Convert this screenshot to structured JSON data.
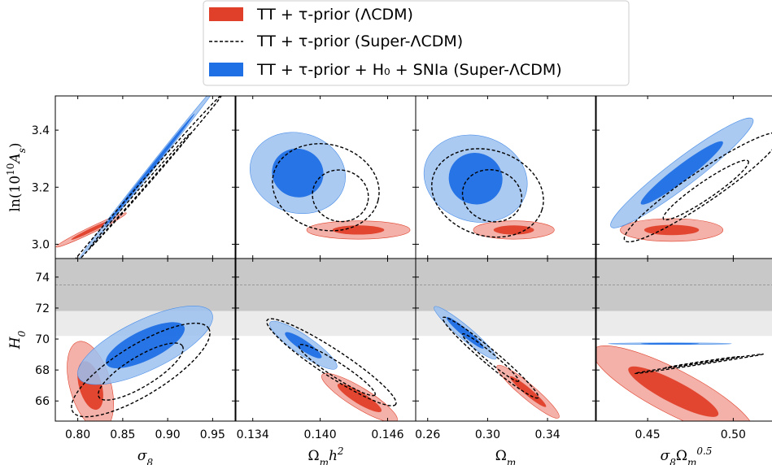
{
  "chart_data": {
    "type": "contour",
    "legend": {
      "placement": "top-center",
      "entries": [
        {
          "label": "TT + τ-prior (ΛCDM)",
          "style": "filled",
          "color": "#e0402a"
        },
        {
          "label": "TT + τ-prior (Super-ΛCDM)",
          "style": "dashed",
          "color": "#000000"
        },
        {
          "label": "TT + τ-prior + H₀ + SNIa (Super-ΛCDM)",
          "style": "filled",
          "color": "#1f6fe5"
        }
      ]
    },
    "colors": {
      "red_outer": "#f2a9a0",
      "red_inner": "#e0402a",
      "blue_outer": "#9cc1f0",
      "blue_inner": "#1f6fe5",
      "band_dark": "#c8c8c8",
      "band_light": "#ebebeb"
    },
    "rows": [
      {
        "ylabel": "ln(10¹⁰A_s)",
        "ylabel_plain": "ln(10",
        "ylabel_sup": "10",
        "ylabel_rest": "A",
        "ylabel_sub": "s",
        "ylim": [
          2.95,
          3.52
        ],
        "yticks": [
          3.0,
          3.2,
          3.4
        ],
        "ytick_labels": [
          "3.0",
          "3.2",
          "3.4"
        ]
      },
      {
        "ylabel": "H₀",
        "ylabel_main": "H",
        "ylabel_sub": "0",
        "ylim": [
          64.7,
          75.2
        ],
        "yticks": [
          66,
          68,
          70,
          72,
          74
        ],
        "ytick_labels": [
          "66",
          "68",
          "70",
          "72",
          "74"
        ],
        "h0_band": {
          "dark": [
            71.8,
            75.2
          ],
          "light": [
            70.2,
            71.8
          ],
          "line": 73.5
        }
      }
    ],
    "columns": [
      {
        "xlabel": "σ₈",
        "xlabel_main": "σ",
        "xlabel_sub": "8",
        "xlim": [
          0.775,
          0.975
        ],
        "xticks": [
          0.8,
          0.85,
          0.9,
          0.95
        ],
        "xtick_labels": [
          "0.80",
          "0.85",
          "0.90",
          "0.95"
        ]
      },
      {
        "xlabel": "Ω_m h²",
        "xlabel_main": "Ω",
        "xlabel_sub": "m",
        "xlabel_rest": "h",
        "xlabel_sup": "2",
        "xlim": [
          0.1325,
          0.1485
        ],
        "xticks": [
          0.134,
          0.14,
          0.146
        ],
        "xtick_labels": [
          "0.134",
          "0.140",
          "0.146"
        ]
      },
      {
        "xlabel": "Ω_m",
        "xlabel_main": "Ω",
        "xlabel_sub": "m",
        "xlim": [
          0.252,
          0.372
        ],
        "xticks": [
          0.26,
          0.3,
          0.34
        ],
        "xtick_labels": [
          "0.26",
          "0.30",
          "0.34"
        ]
      },
      {
        "xlabel": "σ₈Ω_m^0.5",
        "xlabel_main": "σ",
        "xlabel_sub": "8",
        "xlabel_rest": "Ω",
        "xlabel_sub2": "m",
        "xlabel_sup": "0.5",
        "xlim": [
          0.42,
          0.525
        ],
        "xticks": [
          0.45,
          0.5
        ],
        "xtick_labels": [
          "0.45",
          "0.50"
        ]
      }
    ],
    "panels": [
      {
        "row": 0,
        "col": 0,
        "red": {
          "cx": 0.815,
          "cy": 3.05,
          "rx": 0.028,
          "ry": 0.012,
          "angle": 0.45,
          "rx68": 0.016,
          "ry68": 0.007
        },
        "blue": {
          "cx": 0.88,
          "cy": 3.26,
          "rx": 0.082,
          "ry": 0.01,
          "angle": 0.9,
          "rx68": 0.052,
          "ry68": 0.007
        },
        "dashed": [
          {
            "cx": 0.87,
            "cy": 3.2,
            "rx": 0.088,
            "ry": 0.011,
            "angle": 0.85
          },
          {
            "cx": 0.87,
            "cy": 3.19,
            "rx": 0.055,
            "ry": 0.007,
            "angle": 0.85
          }
        ]
      },
      {
        "row": 0,
        "col": 1,
        "red": {
          "cx": 0.1434,
          "cy": 3.05,
          "rx": 0.0046,
          "ry": 0.032,
          "angle": 0,
          "rx68": 0.0023,
          "ry68": 0.016
        },
        "blue": {
          "cx": 0.138,
          "cy": 3.25,
          "rx": 0.0043,
          "ry": 0.14,
          "angle": -0.28,
          "rx68": 0.0023,
          "ry68": 0.085
        },
        "dashed": [
          {
            "cx": 0.1405,
            "cy": 3.2,
            "rx": 0.0048,
            "ry": 0.15,
            "angle": -0.25
          },
          {
            "cx": 0.1418,
            "cy": 3.17,
            "rx": 0.0025,
            "ry": 0.09,
            "angle": -0.25
          }
        ]
      },
      {
        "row": 0,
        "col": 2,
        "red": {
          "cx": 0.3175,
          "cy": 3.05,
          "rx": 0.027,
          "ry": 0.032,
          "angle": 0,
          "rx68": 0.0135,
          "ry68": 0.016
        },
        "blue": {
          "cx": 0.292,
          "cy": 3.23,
          "rx": 0.035,
          "ry": 0.15,
          "angle": -0.3,
          "rx68": 0.018,
          "ry68": 0.09
        },
        "dashed": [
          {
            "cx": 0.3,
            "cy": 3.18,
            "rx": 0.038,
            "ry": 0.15,
            "angle": -0.3
          },
          {
            "cx": 0.303,
            "cy": 3.17,
            "rx": 0.02,
            "ry": 0.09,
            "angle": -0.3
          }
        ]
      },
      {
        "row": 0,
        "col": 3,
        "red": {
          "cx": 0.464,
          "cy": 3.05,
          "rx": 0.03,
          "ry": 0.04,
          "angle": 0,
          "rx68": 0.016,
          "ry68": 0.018
        },
        "blue": {
          "cx": 0.47,
          "cy": 3.25,
          "rx": 0.052,
          "ry": 0.08,
          "angle": 0.65,
          "rx68": 0.03,
          "ry68": 0.045
        },
        "dashed": [
          {
            "cx": 0.482,
            "cy": 3.2,
            "rx": 0.055,
            "ry": 0.09,
            "angle": 0.6
          },
          {
            "cx": 0.484,
            "cy": 3.19,
            "rx": 0.03,
            "ry": 0.05,
            "angle": 0.6
          }
        ]
      },
      {
        "row": 1,
        "col": 0,
        "red": {
          "cx": 0.814,
          "cy": 67.0,
          "rx": 0.04,
          "ry": 0.018,
          "angle": -1.3,
          "rx68": 0.022,
          "ry68": 0.01
        },
        "blue": {
          "cx": 0.875,
          "cy": 69.6,
          "rx": 0.065,
          "ry": 0.022,
          "angle": 0.45,
          "rx68": 0.038,
          "ry68": 0.013
        },
        "dashed": [
          {
            "cx": 0.87,
            "cy": 68.0,
            "rx": 0.07,
            "ry": 0.022,
            "angle": 0.55
          },
          {
            "cx": 0.87,
            "cy": 67.9,
            "rx": 0.043,
            "ry": 0.013,
            "angle": 0.55
          }
        ]
      },
      {
        "row": 1,
        "col": 1,
        "red": {
          "cx": 0.1435,
          "cy": 66.2,
          "rx": 0.06,
          "ry": 0.014,
          "angle": -0.55,
          "rx68": 0.035,
          "ry68": 0.008
        },
        "blue": {
          "cx": 0.1385,
          "cy": 69.6,
          "rx": 0.055,
          "ry": 0.013,
          "angle": -0.6,
          "rx68": 0.03,
          "ry68": 0.007
        },
        "dashed": [
          {
            "cx": 0.141,
            "cy": 68.5,
            "rx": 0.105,
            "ry": 0.018,
            "angle": -0.58
          },
          {
            "cx": 0.1415,
            "cy": 68.0,
            "rx": 0.062,
            "ry": 0.01,
            "angle": -0.58
          }
        ]
      },
      {
        "row": 1,
        "col": 2,
        "red": {
          "cx": 0.327,
          "cy": 66.6,
          "rx": 0.055,
          "ry": 0.01,
          "angle": -0.7,
          "rx68": 0.032,
          "ry68": 0.005
        },
        "blue": {
          "cx": 0.285,
          "cy": 70.4,
          "rx": 0.055,
          "ry": 0.009,
          "angle": -0.7,
          "rx68": 0.033,
          "ry68": 0.005
        },
        "dashed": [
          {
            "cx": 0.302,
            "cy": 68.8,
            "rx": 0.085,
            "ry": 0.01,
            "angle": -0.7
          },
          {
            "cx": 0.302,
            "cy": 68.8,
            "rx": 0.05,
            "ry": 0.006,
            "angle": -0.7
          }
        ]
      },
      {
        "row": 1,
        "col": 3,
        "red": {
          "cx": 0.465,
          "cy": 66.6,
          "rx": 0.082,
          "ry": 0.02,
          "angle": -0.48,
          "rx68": 0.046,
          "ry68": 0.01
        },
        "blue": {
          "cx": 0.463,
          "cy": 69.7,
          "rx": 0.036,
          "ry": 0.041,
          "angle": 0,
          "rx68": 0.017,
          "ry68": 0.02
        },
        "dashed": [
          {
            "cx": 0.48,
            "cy": 68.4,
            "rx": 0.038,
            "ry": 0.055,
            "angle": 0.15
          },
          {
            "cx": 0.482,
            "cy": 68.5,
            "rx": 0.022,
            "ry": 0.032,
            "angle": 0.15
          }
        ]
      }
    ]
  }
}
